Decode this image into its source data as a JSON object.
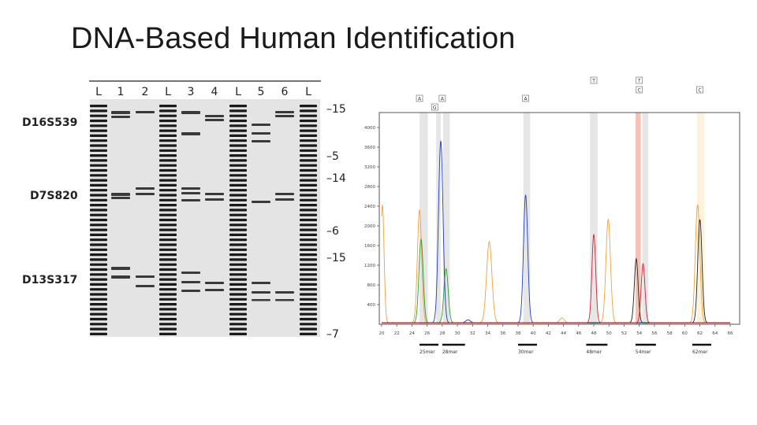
{
  "slide": {
    "title": "DNA-Based Human Identification"
  },
  "gel": {
    "lanes": [
      "L",
      "1",
      "2",
      "L",
      "3",
      "4",
      "L",
      "5",
      "6",
      "L"
    ],
    "loci": [
      "D16S539",
      "D7S820",
      "D13S317"
    ],
    "markers": [
      "15",
      "5",
      "14",
      "6",
      "15",
      "7"
    ]
  },
  "electropherogram": {
    "y_ticks": [
      "4000",
      "3600",
      "3200",
      "2800",
      "2400",
      "2000",
      "1600",
      "1200",
      "800",
      "400"
    ],
    "x_ticks": [
      "20",
      "22",
      "24",
      "26",
      "28",
      "30",
      "32",
      "34",
      "36",
      "38",
      "40",
      "42",
      "44",
      "46",
      "48",
      "50",
      "52",
      "54",
      "56",
      "58",
      "60",
      "62",
      "64",
      "66"
    ],
    "fragments": [
      "25mer",
      "28mer",
      "30mer",
      "48mer",
      "54mer",
      "62mer"
    ],
    "base_calls": [
      {
        "base": "A",
        "at": 25
      },
      {
        "base": "G",
        "at": 27
      },
      {
        "base": "A",
        "at": 28
      },
      {
        "base": "A",
        "at": 39
      },
      {
        "base": "T",
        "at": 48
      },
      {
        "base": "T",
        "at": 54
      },
      {
        "base": "C",
        "at": 54
      },
      {
        "base": "C",
        "at": 62
      }
    ],
    "colors": {
      "A": "#2ca02c",
      "C": "#1f3cbf",
      "G": "#222222",
      "T": "#cc2233",
      "standard": "#f0a040",
      "highlight_gray": "#e6e6e6",
      "highlight_red": "#f2c4b8",
      "highlight_yellow": "#fdf3dc"
    }
  }
}
